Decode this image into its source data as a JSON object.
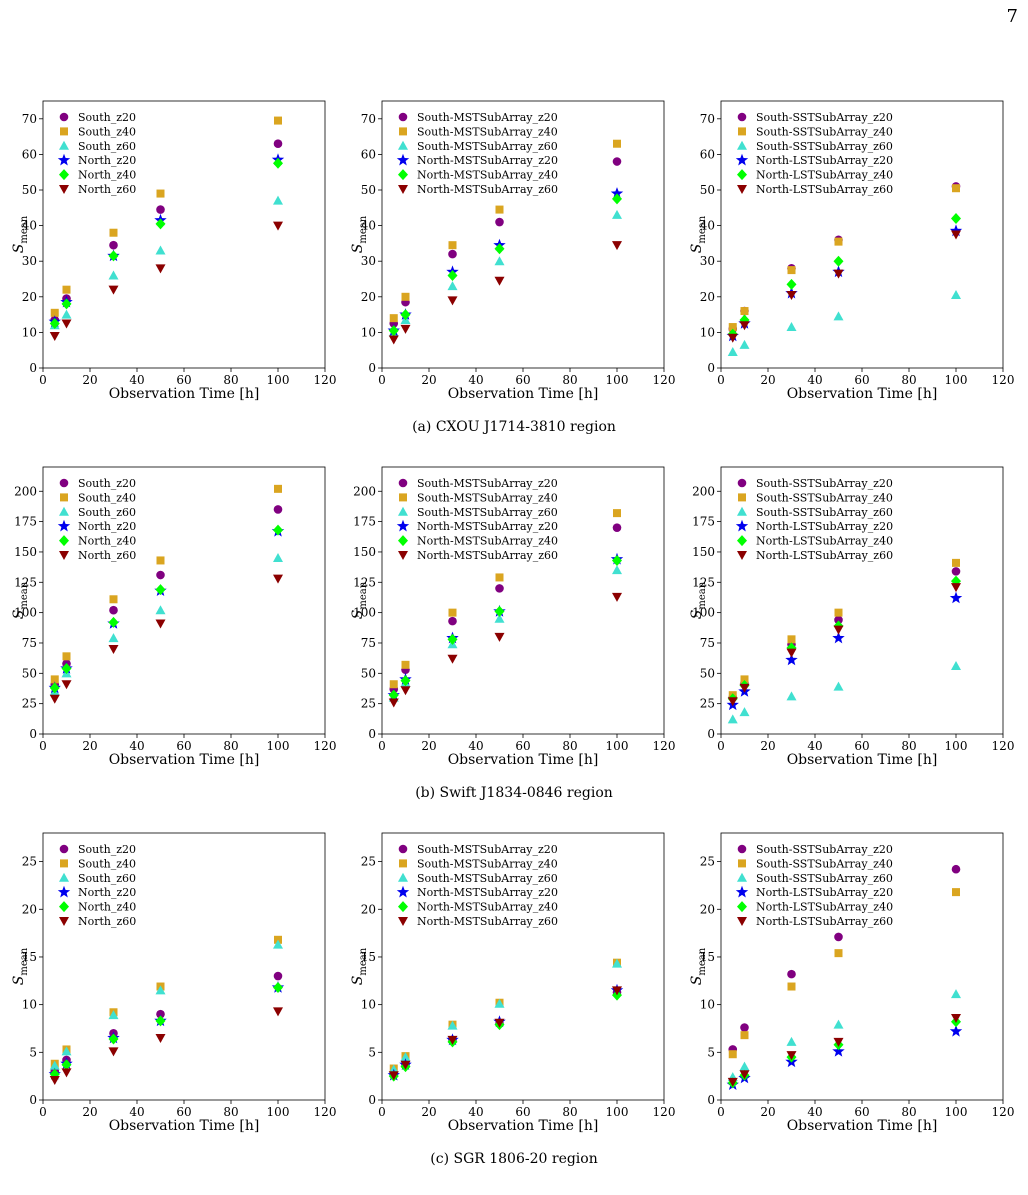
{
  "page_number": "7",
  "captions": [
    "(a) CXOU J1714-3810 region",
    "(b) Swift J1834-0846 region",
    "(c) SGR 1806-20 region"
  ],
  "markers": {
    "z20": "circle",
    "z40": "square",
    "z60": "triangle-up",
    "N20": "star",
    "N40": "diamond",
    "N60": "triangle-down"
  },
  "colors": {
    "South_z20": "#800080",
    "South_z40": "#DAA520",
    "South_z60": "#40E0D0",
    "North_z20": "#0000EE",
    "North_z40": "#00FF00",
    "North_z60": "#8B0000"
  },
  "chart_data": [
    {
      "type": "scatter",
      "row": 0,
      "col": 0,
      "xlabel": "Observation Time [h]",
      "ylabel": "S",
      "ylabel_sub": "mean",
      "xlim": [
        0,
        120
      ],
      "ylim": [
        0,
        75
      ],
      "xticks": [
        0,
        20,
        40,
        60,
        80,
        100,
        120
      ],
      "yticks": [
        0,
        10,
        20,
        30,
        40,
        50,
        60,
        70
      ],
      "x": [
        5,
        10,
        30,
        50,
        100
      ],
      "series": [
        {
          "name": "South_z20",
          "values": [
            13.5,
            19.5,
            34.5,
            44.5,
            63
          ]
        },
        {
          "name": "South_z40",
          "values": [
            15.5,
            22,
            38,
            49,
            69.5
          ]
        },
        {
          "name": "South_z60",
          "values": [
            12,
            15,
            26,
            33,
            47
          ]
        },
        {
          "name": "North_z20",
          "values": [
            13,
            18.5,
            31.5,
            41.5,
            58.5
          ]
        },
        {
          "name": "North_z40",
          "values": [
            12.5,
            18,
            31.5,
            40.5,
            57.5
          ]
        },
        {
          "name": "North_z60",
          "values": [
            9,
            12.5,
            22,
            28,
            40
          ]
        }
      ]
    },
    {
      "type": "scatter",
      "row": 0,
      "col": 1,
      "xlabel": "Observation Time [h]",
      "ylabel": "S",
      "ylabel_sub": "mean",
      "xlim": [
        0,
        120
      ],
      "ylim": [
        0,
        75
      ],
      "xticks": [
        0,
        20,
        40,
        60,
        80,
        100,
        120
      ],
      "yticks": [
        0,
        10,
        20,
        30,
        40,
        50,
        60,
        70
      ],
      "x": [
        5,
        10,
        30,
        50,
        100
      ],
      "series": [
        {
          "name": "South-MSTSubArray_z20",
          "values": [
            12.5,
            18.5,
            32,
            41,
            58
          ]
        },
        {
          "name": "South-MSTSubArray_z40",
          "values": [
            14,
            20,
            34.5,
            44.5,
            63
          ]
        },
        {
          "name": "South-MSTSubArray_z60",
          "values": [
            10,
            13.5,
            23,
            30,
            43
          ]
        },
        {
          "name": "North-MSTSubArray_z20",
          "values": [
            10.5,
            15,
            27,
            34.5,
            49
          ]
        },
        {
          "name": "North-MSTSubArray_z40",
          "values": [
            10.5,
            15,
            26,
            33.5,
            47.5
          ]
        },
        {
          "name": "North-MSTSubArray_z60",
          "values": [
            8,
            11,
            19,
            24.5,
            34.5
          ]
        }
      ]
    },
    {
      "type": "scatter",
      "row": 0,
      "col": 2,
      "xlabel": "Observation Time [h]",
      "ylabel": "S",
      "ylabel_sub": "mean",
      "xlim": [
        0,
        120
      ],
      "ylim": [
        0,
        75
      ],
      "xticks": [
        0,
        20,
        40,
        60,
        80,
        100,
        120
      ],
      "yticks": [
        0,
        10,
        20,
        30,
        40,
        50,
        60,
        70
      ],
      "x": [
        5,
        10,
        30,
        50,
        100
      ],
      "series": [
        {
          "name": "South-SSTSubArray_z20",
          "values": [
            11,
            16,
            28,
            36,
            51
          ]
        },
        {
          "name": "South-SSTSubArray_z40",
          "values": [
            11.5,
            16,
            27.5,
            35.5,
            50.5
          ]
        },
        {
          "name": "South-SSTSubArray_z60",
          "values": [
            4.5,
            6.5,
            11.5,
            14.5,
            20.5
          ]
        },
        {
          "name": "North-LSTSubArray_z20",
          "values": [
            9,
            12.5,
            21,
            27,
            38.5
          ]
        },
        {
          "name": "North-LSTSubArray_z40",
          "values": [
            9.5,
            13.5,
            23.5,
            30,
            42
          ]
        },
        {
          "name": "North-LSTSubArray_z60",
          "values": [
            8.5,
            12,
            20.5,
            26.5,
            37.5
          ]
        }
      ]
    },
    {
      "type": "scatter",
      "row": 1,
      "col": 0,
      "xlabel": "Observation Time [h]",
      "ylabel": "S",
      "ylabel_sub": "mean",
      "xlim": [
        0,
        120
      ],
      "ylim": [
        0,
        220
      ],
      "xticks": [
        0,
        20,
        40,
        60,
        80,
        100,
        120
      ],
      "yticks": [
        0,
        25,
        50,
        75,
        100,
        125,
        150,
        175,
        200
      ],
      "x": [
        5,
        10,
        30,
        50,
        100
      ],
      "series": [
        {
          "name": "South_z20",
          "values": [
            41,
            58,
            102,
            131,
            185
          ]
        },
        {
          "name": "South_z40",
          "values": [
            45,
            64,
            111,
            143,
            202
          ]
        },
        {
          "name": "South_z60",
          "values": [
            35,
            50,
            79,
            102,
            145
          ]
        },
        {
          "name": "North_z20",
          "values": [
            38,
            54,
            91,
            118,
            167
          ]
        },
        {
          "name": "North_z40",
          "values": [
            38,
            54,
            92,
            119,
            168
          ]
        },
        {
          "name": "North_z60",
          "values": [
            29,
            41,
            70,
            91,
            128
          ]
        }
      ]
    },
    {
      "type": "scatter",
      "row": 1,
      "col": 1,
      "xlabel": "Observation Time [h]",
      "ylabel": "S",
      "ylabel_sub": "mean",
      "xlim": [
        0,
        120
      ],
      "ylim": [
        0,
        220
      ],
      "xticks": [
        0,
        20,
        40,
        60,
        80,
        100,
        120
      ],
      "yticks": [
        0,
        25,
        50,
        75,
        100,
        125,
        150,
        175,
        200
      ],
      "x": [
        5,
        10,
        30,
        50,
        100
      ],
      "series": [
        {
          "name": "South-MSTSubArray_z20",
          "values": [
            37,
            53,
            93,
            120,
            170
          ]
        },
        {
          "name": "South-MSTSubArray_z40",
          "values": [
            41,
            57,
            100,
            129,
            182
          ]
        },
        {
          "name": "South-MSTSubArray_z60",
          "values": [
            30,
            42,
            74,
            95,
            135
          ]
        },
        {
          "name": "North-MSTSubArray_z20",
          "values": [
            32,
            45,
            79,
            101,
            144
          ]
        },
        {
          "name": "North-MSTSubArray_z40",
          "values": [
            32,
            44,
            78,
            101,
            143
          ]
        },
        {
          "name": "North-MSTSubArray_z60",
          "values": [
            26,
            36,
            62,
            80,
            113
          ]
        }
      ]
    },
    {
      "type": "scatter",
      "row": 1,
      "col": 2,
      "xlabel": "Observation Time [h]",
      "ylabel": "S",
      "ylabel_sub": "mean",
      "xlim": [
        0,
        120
      ],
      "ylim": [
        0,
        220
      ],
      "xticks": [
        0,
        20,
        40,
        60,
        80,
        100,
        120
      ],
      "yticks": [
        0,
        25,
        50,
        75,
        100,
        125,
        150,
        175,
        200
      ],
      "x": [
        5,
        10,
        30,
        50,
        100
      ],
      "series": [
        {
          "name": "South-SSTSubArray_z20",
          "values": [
            30,
            42,
            74,
            94,
            134
          ]
        },
        {
          "name": "South-SSTSubArray_z40",
          "values": [
            32,
            45,
            78,
            100,
            141
          ]
        },
        {
          "name": "South-SSTSubArray_z60",
          "values": [
            12,
            18,
            31,
            39,
            56
          ]
        },
        {
          "name": "North-LSTSubArray_z20",
          "values": [
            24,
            35,
            61,
            79,
            112
          ]
        },
        {
          "name": "North-LSTSubArray_z40",
          "values": [
            29,
            40,
            71,
            89,
            126
          ]
        },
        {
          "name": "North-LSTSubArray_z60",
          "values": [
            27,
            38,
            67,
            86,
            121
          ]
        }
      ]
    },
    {
      "type": "scatter",
      "row": 2,
      "col": 0,
      "xlabel": "Observation Time [h]",
      "ylabel": "S",
      "ylabel_sub": "mean",
      "xlim": [
        0,
        120
      ],
      "ylim": [
        0,
        28
      ],
      "xticks": [
        0,
        20,
        40,
        60,
        80,
        100,
        120
      ],
      "yticks": [
        0,
        5,
        10,
        15,
        20,
        25
      ],
      "x": [
        5,
        10,
        30,
        50,
        100
      ],
      "series": [
        {
          "name": "South_z20",
          "values": [
            3,
            4.2,
            7,
            9,
            13
          ]
        },
        {
          "name": "South_z40",
          "values": [
            3.8,
            5.3,
            9.2,
            11.9,
            16.8
          ]
        },
        {
          "name": "South_z60",
          "values": [
            3.6,
            5.1,
            8.9,
            11.5,
            16.3
          ]
        },
        {
          "name": "North_z20",
          "values": [
            2.7,
            3.8,
            6.5,
            8.3,
            11.8
          ]
        },
        {
          "name": "North_z40",
          "values": [
            2.7,
            3.7,
            6.4,
            8.3,
            11.8
          ]
        },
        {
          "name": "North_z60",
          "values": [
            2.1,
            2.9,
            5.1,
            6.5,
            9.3
          ]
        }
      ]
    },
    {
      "type": "scatter",
      "row": 2,
      "col": 1,
      "xlabel": "Observation Time [h]",
      "ylabel": "S",
      "ylabel_sub": "mean",
      "xlim": [
        0,
        120
      ],
      "ylim": [
        0,
        28
      ],
      "xticks": [
        0,
        20,
        40,
        60,
        80,
        100,
        120
      ],
      "yticks": [
        0,
        5,
        10,
        15,
        20,
        25
      ],
      "x": [
        5,
        10,
        30,
        50,
        100
      ],
      "series": [
        {
          "name": "South-MSTSubArray_z20",
          "values": [
            2.7,
            3.7,
            6.3,
            8,
            11.3
          ]
        },
        {
          "name": "South-MSTSubArray_z40",
          "values": [
            3.3,
            4.6,
            7.9,
            10.2,
            14.4
          ]
        },
        {
          "name": "South-MSTSubArray_z60",
          "values": [
            3.2,
            4.5,
            7.8,
            10.1,
            14.3
          ]
        },
        {
          "name": "North-MSTSubArray_z20",
          "values": [
            2.6,
            3.7,
            6.3,
            8.2,
            11.5
          ]
        },
        {
          "name": "North-MSTSubArray_z40",
          "values": [
            2.5,
            3.5,
            6.1,
            7.9,
            11
          ]
        },
        {
          "name": "North-MSTSubArray_z60",
          "values": [
            2.6,
            3.7,
            6.3,
            8.1,
            11.5
          ]
        }
      ]
    },
    {
      "type": "scatter",
      "row": 2,
      "col": 2,
      "xlabel": "Observation Time [h]",
      "ylabel": "S",
      "ylabel_sub": "mean",
      "xlim": [
        0,
        120
      ],
      "ylim": [
        0,
        28
      ],
      "xticks": [
        0,
        20,
        40,
        60,
        80,
        100,
        120
      ],
      "yticks": [
        0,
        5,
        10,
        15,
        20,
        25
      ],
      "x": [
        5,
        10,
        30,
        50,
        100
      ],
      "series": [
        {
          "name": "South-SSTSubArray_z20",
          "values": [
            5.3,
            7.6,
            13.2,
            17.1,
            24.2
          ]
        },
        {
          "name": "South-SSTSubArray_z40",
          "values": [
            4.8,
            6.8,
            11.9,
            15.4,
            21.8
          ]
        },
        {
          "name": "South-SSTSubArray_z60",
          "values": [
            2.4,
            3.5,
            6.1,
            7.9,
            11.1
          ]
        },
        {
          "name": "North-LSTSubArray_z20",
          "values": [
            1.6,
            2.3,
            4,
            5.1,
            7.2
          ]
        },
        {
          "name": "North-LSTSubArray_z40",
          "values": [
            1.8,
            2.6,
            4.5,
            5.8,
            8.2
          ]
        },
        {
          "name": "North-LSTSubArray_z60",
          "values": [
            1.9,
            2.7,
            4.7,
            6.1,
            8.6
          ]
        }
      ]
    }
  ]
}
